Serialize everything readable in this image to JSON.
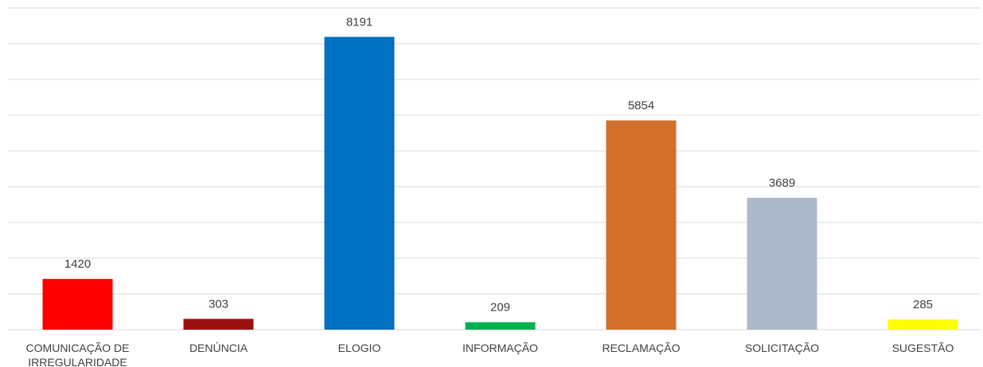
{
  "chart_data": {
    "type": "bar",
    "categories": [
      "COMUNICAÇÃO DE IRREGULARIDADE",
      "DENÚNCIA",
      "ELOGIO",
      "INFORMAÇÃO",
      "RECLAMAÇÃO",
      "SOLICITAÇÃO",
      "SUGESTÃO"
    ],
    "values": [
      1420,
      303,
      8191,
      209,
      5854,
      3689,
      285
    ],
    "colors": [
      "#ff0000",
      "#9b1111",
      "#0070c0",
      "#00b050",
      "#d2702b",
      "#adb9ca",
      "#ffff00"
    ],
    "ylim": [
      0,
      9000
    ],
    "yticks": [
      0,
      1000,
      2000,
      3000,
      4000,
      5000,
      6000,
      7000,
      8000,
      9000
    ],
    "grid": true
  }
}
